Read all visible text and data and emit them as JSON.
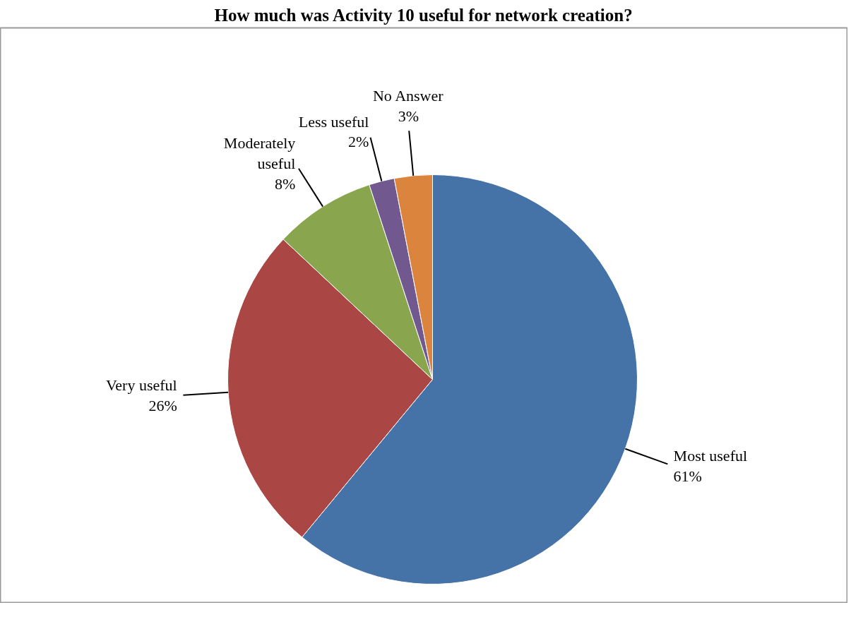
{
  "chart_data": {
    "type": "pie",
    "title": "How much was Activity 10 useful for network creation?",
    "categories": [
      "Most useful",
      "Very useful",
      "Moderately useful",
      "Less useful",
      "No Answer"
    ],
    "values": [
      61,
      26,
      8,
      2,
      3
    ],
    "colors": [
      "#4572a7",
      "#aa4643",
      "#89a54e",
      "#71588f",
      "#db843d"
    ],
    "value_labels": [
      "61%",
      "26%",
      "8%",
      "2%",
      "3%"
    ]
  }
}
